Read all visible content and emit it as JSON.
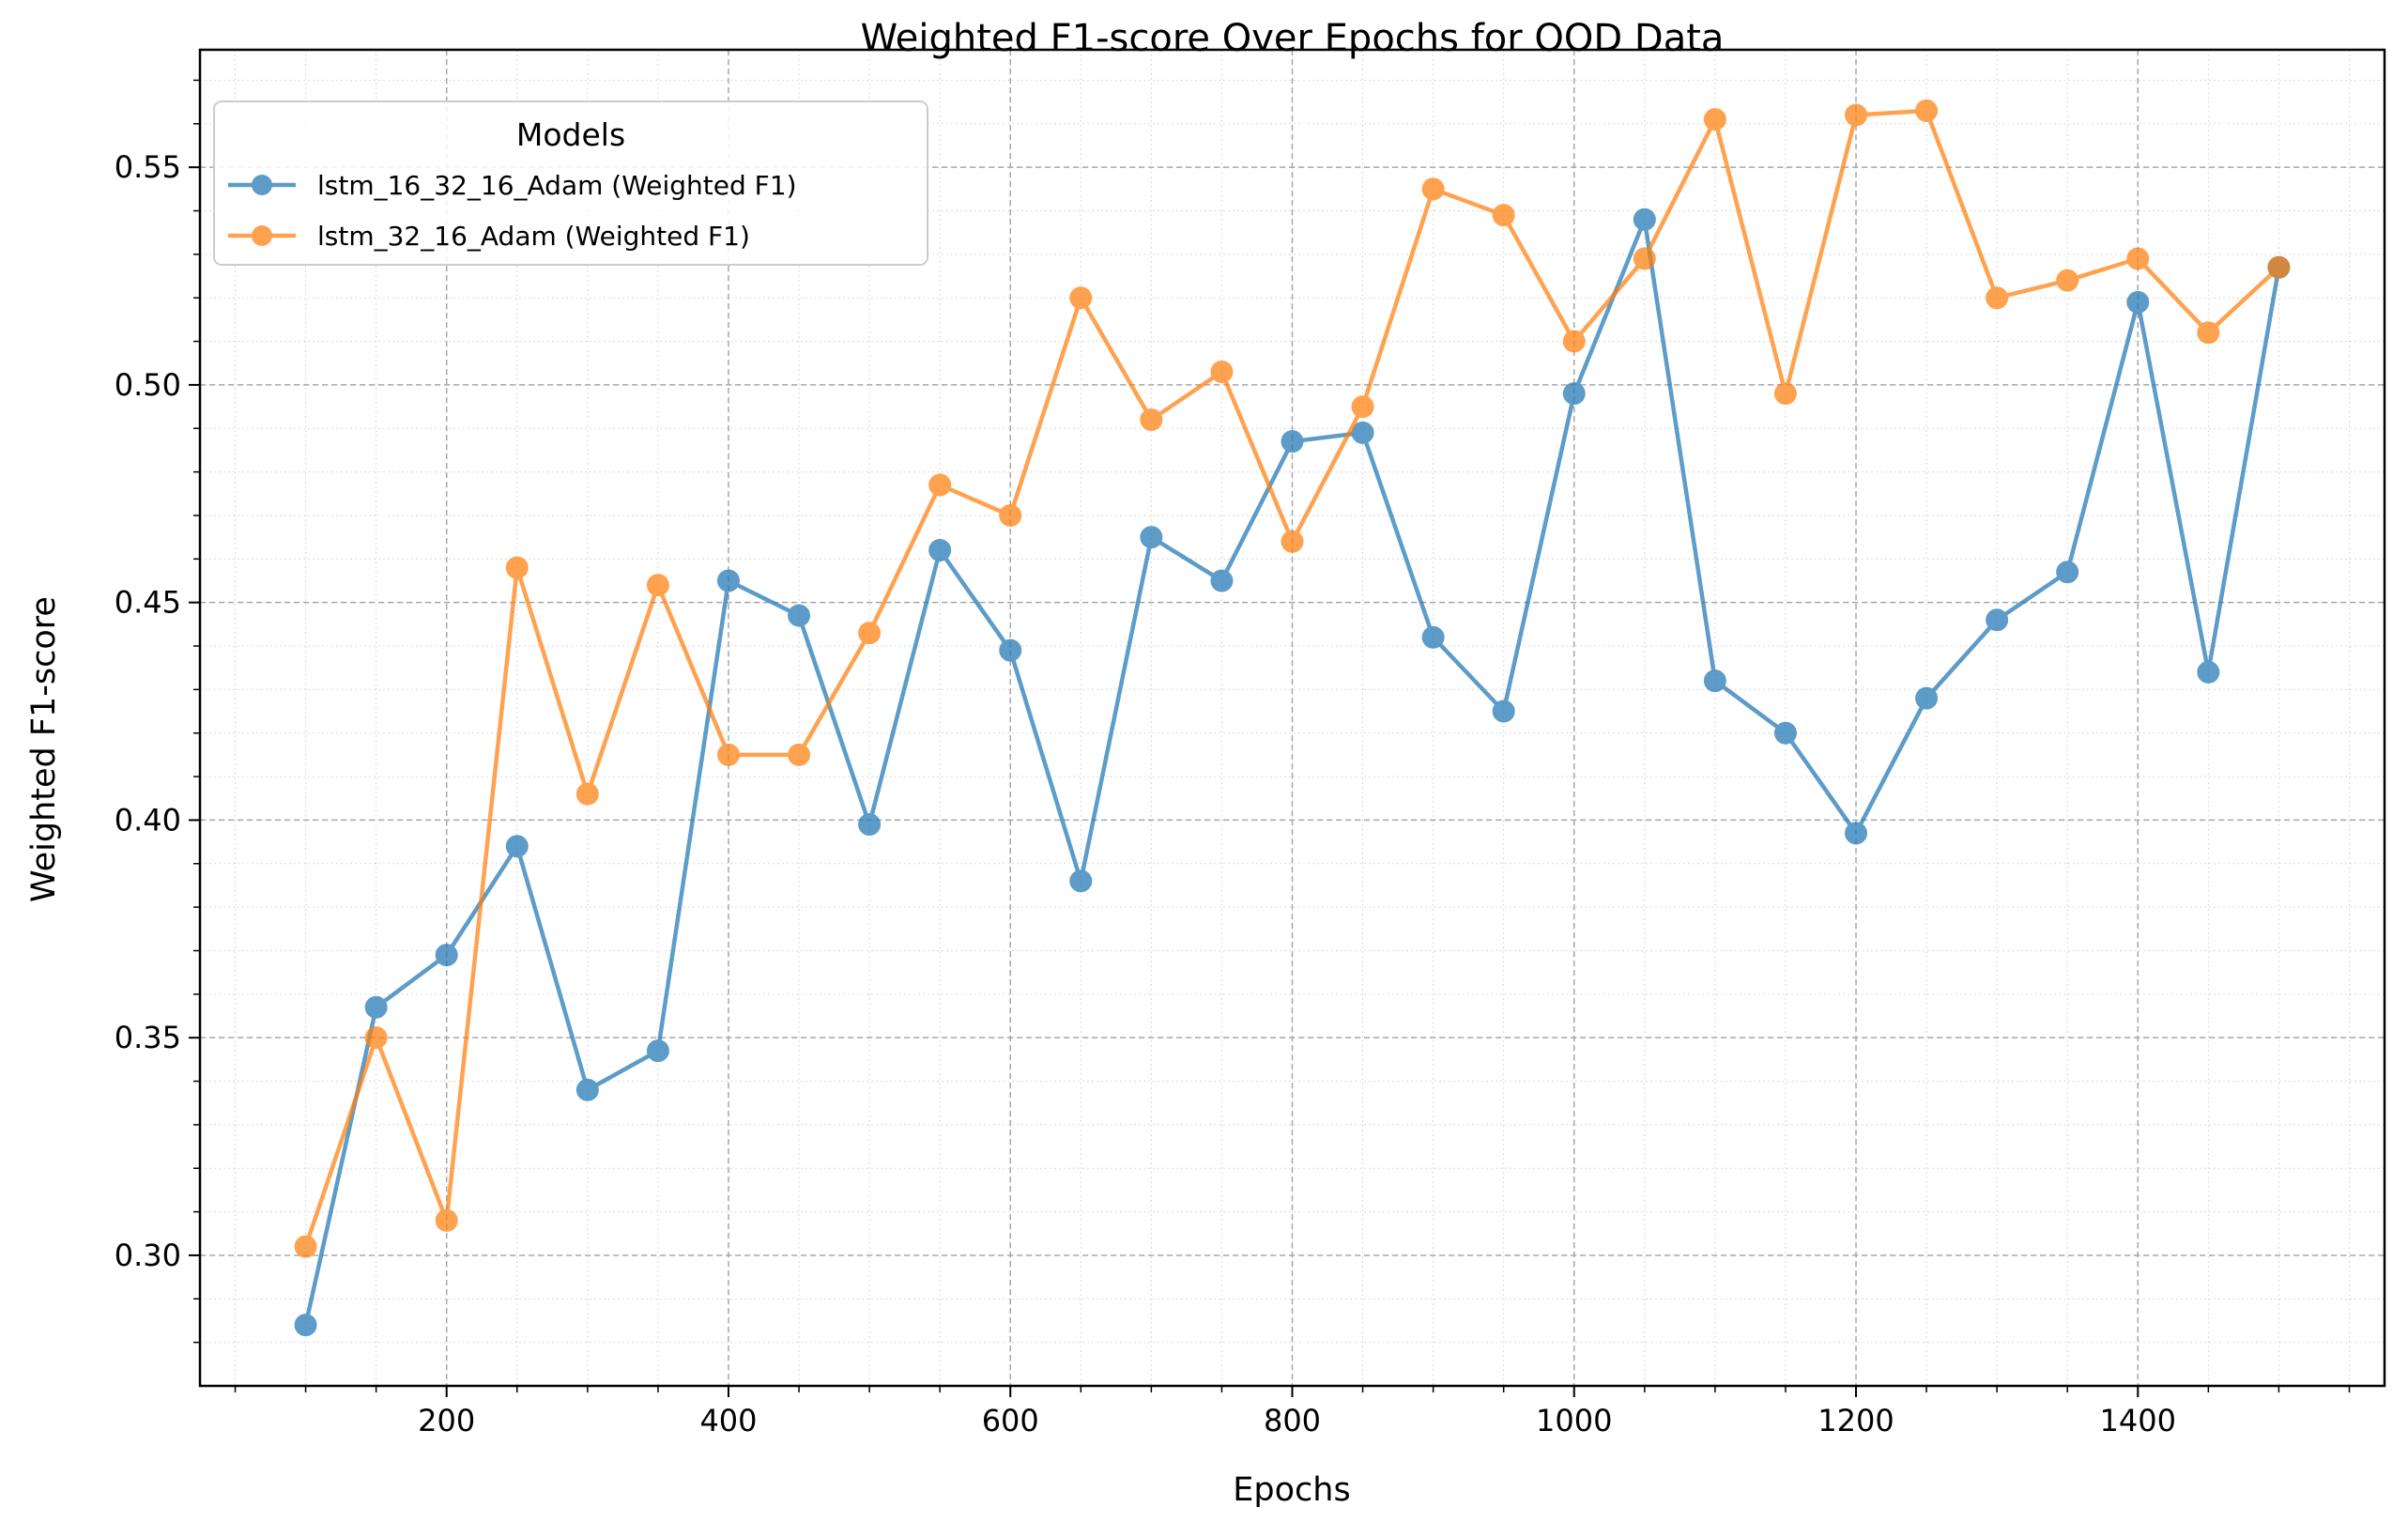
{
  "chart_data": {
    "type": "line",
    "title": "Weighted F1-score Over Epochs for OOD Data",
    "xlabel": "Epochs",
    "ylabel": "Weighted F1-score",
    "xlim": [
      25,
      1575
    ],
    "ylim": [
      0.27,
      0.577
    ],
    "xticks": [
      200,
      400,
      600,
      800,
      1000,
      1200,
      1400
    ],
    "xtick_labels": [
      "200",
      "400",
      "600",
      "800",
      "1000",
      "1200",
      "1400"
    ],
    "yticks": [
      0.3,
      0.35,
      0.4,
      0.45,
      0.5,
      0.55
    ],
    "ytick_labels": [
      "0.30",
      "0.35",
      "0.40",
      "0.45",
      "0.50",
      "0.55"
    ],
    "grid": true,
    "legend_title": "Models",
    "legend_position": "top-left",
    "x": [
      100,
      150,
      200,
      250,
      300,
      350,
      400,
      450,
      500,
      550,
      600,
      650,
      700,
      750,
      800,
      850,
      900,
      950,
      1000,
      1050,
      1100,
      1150,
      1200,
      1250,
      1300,
      1350,
      1400,
      1450,
      1500
    ],
    "series": [
      {
        "name": "lstm_16_32_16_Adam (Weighted F1)",
        "color": "#1f77b4",
        "values": [
          0.284,
          0.357,
          0.369,
          0.394,
          0.338,
          0.347,
          0.455,
          0.447,
          0.399,
          0.462,
          0.439,
          0.386,
          0.465,
          0.455,
          0.487,
          0.489,
          0.442,
          0.425,
          0.498,
          0.538,
          0.432,
          0.42,
          0.397,
          0.428,
          0.446,
          0.457,
          0.519,
          0.434,
          0.527
        ]
      },
      {
        "name": "lstm_32_16_Adam (Weighted F1)",
        "color": "#ff7f0e",
        "values": [
          0.302,
          0.35,
          0.308,
          0.458,
          0.406,
          0.454,
          0.415,
          0.415,
          0.443,
          0.477,
          0.47,
          0.52,
          0.492,
          0.503,
          0.464,
          0.495,
          0.545,
          0.539,
          0.51,
          0.529,
          0.561,
          0.498,
          0.562,
          0.563,
          0.52,
          0.524,
          0.529,
          0.512,
          0.527
        ]
      }
    ]
  }
}
